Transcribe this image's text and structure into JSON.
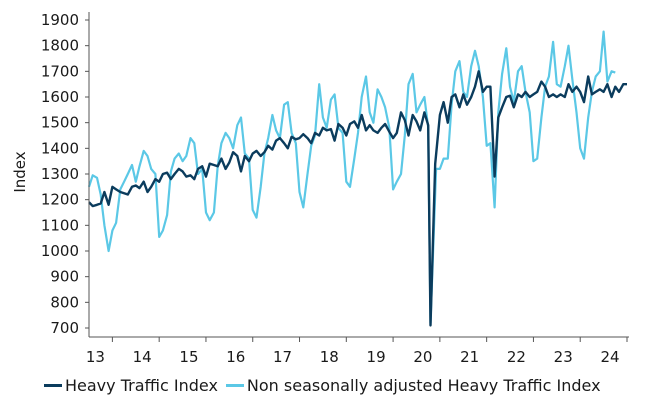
{
  "chart_data": {
    "type": "line",
    "title": "",
    "xlabel": "",
    "ylabel": "Index",
    "ylim": [
      700,
      1900
    ],
    "yticks": [
      700,
      800,
      900,
      1000,
      1100,
      1200,
      1300,
      1400,
      1500,
      1600,
      1700,
      1800,
      1900
    ],
    "xlim": [
      2012.5,
      2024.0
    ],
    "xticks": [
      {
        "value": 2013.0,
        "label": "13"
      },
      {
        "value": 2014.0,
        "label": "14"
      },
      {
        "value": 2015.0,
        "label": "15"
      },
      {
        "value": 2016.0,
        "label": "16"
      },
      {
        "value": 2017.0,
        "label": "17"
      },
      {
        "value": 2018.0,
        "label": "18"
      },
      {
        "value": 2019.0,
        "label": "19"
      },
      {
        "value": 2020.0,
        "label": "20"
      },
      {
        "value": 2021.0,
        "label": "21"
      },
      {
        "value": 2022.0,
        "label": "22"
      },
      {
        "value": 2023.0,
        "label": "23"
      },
      {
        "value": 2024.0,
        "label": "24"
      }
    ],
    "legend_position": "bottom",
    "series": [
      {
        "name": "Heavy Traffic Index",
        "color": "#0b3c5d",
        "points": [
          [
            2012.5,
            1190
          ],
          [
            2012.58,
            1175
          ],
          [
            2012.67,
            1180
          ],
          [
            2012.75,
            1185
          ],
          [
            2012.83,
            1230
          ],
          [
            2012.92,
            1180
          ],
          [
            2013.0,
            1250
          ],
          [
            2013.08,
            1240
          ],
          [
            2013.17,
            1230
          ],
          [
            2013.25,
            1225
          ],
          [
            2013.33,
            1220
          ],
          [
            2013.42,
            1250
          ],
          [
            2013.5,
            1255
          ],
          [
            2013.58,
            1245
          ],
          [
            2013.67,
            1270
          ],
          [
            2013.75,
            1230
          ],
          [
            2013.83,
            1250
          ],
          [
            2013.92,
            1280
          ],
          [
            2014.0,
            1270
          ],
          [
            2014.08,
            1300
          ],
          [
            2014.17,
            1305
          ],
          [
            2014.25,
            1280
          ],
          [
            2014.33,
            1300
          ],
          [
            2014.42,
            1320
          ],
          [
            2014.5,
            1310
          ],
          [
            2014.58,
            1290
          ],
          [
            2014.67,
            1295
          ],
          [
            2014.75,
            1280
          ],
          [
            2014.83,
            1320
          ],
          [
            2014.92,
            1330
          ],
          [
            2015.0,
            1290
          ],
          [
            2015.08,
            1340
          ],
          [
            2015.17,
            1335
          ],
          [
            2015.25,
            1330
          ],
          [
            2015.33,
            1360
          ],
          [
            2015.42,
            1320
          ],
          [
            2015.5,
            1345
          ],
          [
            2015.58,
            1385
          ],
          [
            2015.67,
            1370
          ],
          [
            2015.75,
            1310
          ],
          [
            2015.83,
            1370
          ],
          [
            2015.92,
            1350
          ],
          [
            2016.0,
            1380
          ],
          [
            2016.08,
            1390
          ],
          [
            2016.17,
            1370
          ],
          [
            2016.25,
            1385
          ],
          [
            2016.33,
            1410
          ],
          [
            2016.42,
            1395
          ],
          [
            2016.5,
            1430
          ],
          [
            2016.58,
            1440
          ],
          [
            2016.67,
            1420
          ],
          [
            2016.75,
            1400
          ],
          [
            2016.83,
            1445
          ],
          [
            2016.92,
            1435
          ],
          [
            2017.0,
            1440
          ],
          [
            2017.08,
            1455
          ],
          [
            2017.17,
            1440
          ],
          [
            2017.25,
            1420
          ],
          [
            2017.33,
            1460
          ],
          [
            2017.42,
            1450
          ],
          [
            2017.5,
            1480
          ],
          [
            2017.58,
            1470
          ],
          [
            2017.67,
            1475
          ],
          [
            2017.75,
            1430
          ],
          [
            2017.83,
            1495
          ],
          [
            2017.92,
            1480
          ],
          [
            2018.0,
            1450
          ],
          [
            2018.08,
            1495
          ],
          [
            2018.17,
            1505
          ],
          [
            2018.25,
            1480
          ],
          [
            2018.33,
            1530
          ],
          [
            2018.42,
            1470
          ],
          [
            2018.5,
            1490
          ],
          [
            2018.58,
            1470
          ],
          [
            2018.67,
            1460
          ],
          [
            2018.75,
            1480
          ],
          [
            2018.83,
            1495
          ],
          [
            2018.92,
            1465
          ],
          [
            2019.0,
            1440
          ],
          [
            2019.08,
            1460
          ],
          [
            2019.17,
            1540
          ],
          [
            2019.25,
            1510
          ],
          [
            2019.33,
            1450
          ],
          [
            2019.42,
            1530
          ],
          [
            2019.5,
            1505
          ],
          [
            2019.58,
            1470
          ],
          [
            2019.67,
            1540
          ],
          [
            2019.75,
            1490
          ],
          [
            2019.8,
            710
          ],
          [
            2019.9,
            1340
          ],
          [
            2020.0,
            1530
          ],
          [
            2020.08,
            1580
          ],
          [
            2020.17,
            1500
          ],
          [
            2020.25,
            1600
          ],
          [
            2020.33,
            1610
          ],
          [
            2020.42,
            1560
          ],
          [
            2020.5,
            1610
          ],
          [
            2020.58,
            1570
          ],
          [
            2020.67,
            1600
          ],
          [
            2020.75,
            1640
          ],
          [
            2020.83,
            1700
          ],
          [
            2020.92,
            1620
          ],
          [
            2021.0,
            1640
          ],
          [
            2021.08,
            1640
          ],
          [
            2021.17,
            1290
          ],
          [
            2021.25,
            1520
          ],
          [
            2021.33,
            1560
          ],
          [
            2021.42,
            1600
          ],
          [
            2021.5,
            1605
          ],
          [
            2021.58,
            1560
          ],
          [
            2021.67,
            1610
          ],
          [
            2021.75,
            1600
          ],
          [
            2021.83,
            1620
          ],
          [
            2021.92,
            1600
          ],
          [
            2022.0,
            1610
          ],
          [
            2022.08,
            1620
          ],
          [
            2022.17,
            1660
          ],
          [
            2022.25,
            1640
          ],
          [
            2022.33,
            1600
          ],
          [
            2022.42,
            1610
          ],
          [
            2022.5,
            1600
          ],
          [
            2022.58,
            1610
          ],
          [
            2022.67,
            1600
          ],
          [
            2022.75,
            1650
          ],
          [
            2022.83,
            1620
          ],
          [
            2022.92,
            1640
          ],
          [
            2023.0,
            1620
          ],
          [
            2023.08,
            1580
          ],
          [
            2023.17,
            1680
          ],
          [
            2023.25,
            1610
          ],
          [
            2023.33,
            1620
          ],
          [
            2023.42,
            1630
          ],
          [
            2023.5,
            1620
          ],
          [
            2023.58,
            1650
          ],
          [
            2023.67,
            1600
          ],
          [
            2023.75,
            1640
          ],
          [
            2023.83,
            1620
          ],
          [
            2023.92,
            1650
          ],
          [
            2024.0,
            1650
          ]
        ]
      },
      {
        "name": "Non seasonally adjusted Heavy Traffic Index",
        "color": "#5bc8e6",
        "points": [
          [
            2012.5,
            1250
          ],
          [
            2012.58,
            1295
          ],
          [
            2012.67,
            1285
          ],
          [
            2012.75,
            1220
          ],
          [
            2012.83,
            1100
          ],
          [
            2012.92,
            1000
          ],
          [
            2013.0,
            1080
          ],
          [
            2013.08,
            1110
          ],
          [
            2013.17,
            1240
          ],
          [
            2013.25,
            1270
          ],
          [
            2013.33,
            1300
          ],
          [
            2013.42,
            1335
          ],
          [
            2013.5,
            1270
          ],
          [
            2013.58,
            1330
          ],
          [
            2013.67,
            1390
          ],
          [
            2013.75,
            1370
          ],
          [
            2013.83,
            1320
          ],
          [
            2013.92,
            1300
          ],
          [
            2014.0,
            1055
          ],
          [
            2014.08,
            1080
          ],
          [
            2014.17,
            1140
          ],
          [
            2014.25,
            1310
          ],
          [
            2014.33,
            1360
          ],
          [
            2014.42,
            1380
          ],
          [
            2014.5,
            1350
          ],
          [
            2014.58,
            1370
          ],
          [
            2014.67,
            1440
          ],
          [
            2014.75,
            1420
          ],
          [
            2014.83,
            1300
          ],
          [
            2014.92,
            1320
          ],
          [
            2015.0,
            1150
          ],
          [
            2015.08,
            1120
          ],
          [
            2015.17,
            1150
          ],
          [
            2015.25,
            1330
          ],
          [
            2015.33,
            1420
          ],
          [
            2015.42,
            1460
          ],
          [
            2015.5,
            1440
          ],
          [
            2015.58,
            1400
          ],
          [
            2015.67,
            1490
          ],
          [
            2015.75,
            1520
          ],
          [
            2015.83,
            1380
          ],
          [
            2015.92,
            1360
          ],
          [
            2016.0,
            1160
          ],
          [
            2016.08,
            1130
          ],
          [
            2016.17,
            1250
          ],
          [
            2016.25,
            1380
          ],
          [
            2016.33,
            1440
          ],
          [
            2016.42,
            1530
          ],
          [
            2016.5,
            1470
          ],
          [
            2016.58,
            1440
          ],
          [
            2016.67,
            1570
          ],
          [
            2016.75,
            1580
          ],
          [
            2016.83,
            1460
          ],
          [
            2016.92,
            1420
          ],
          [
            2017.0,
            1230
          ],
          [
            2017.08,
            1170
          ],
          [
            2017.17,
            1300
          ],
          [
            2017.25,
            1410
          ],
          [
            2017.33,
            1450
          ],
          [
            2017.42,
            1650
          ],
          [
            2017.5,
            1520
          ],
          [
            2017.58,
            1480
          ],
          [
            2017.67,
            1590
          ],
          [
            2017.75,
            1610
          ],
          [
            2017.83,
            1480
          ],
          [
            2017.92,
            1460
          ],
          [
            2018.0,
            1270
          ],
          [
            2018.08,
            1250
          ],
          [
            2018.17,
            1360
          ],
          [
            2018.25,
            1460
          ],
          [
            2018.33,
            1600
          ],
          [
            2018.42,
            1680
          ],
          [
            2018.5,
            1540
          ],
          [
            2018.58,
            1500
          ],
          [
            2018.67,
            1630
          ],
          [
            2018.75,
            1600
          ],
          [
            2018.83,
            1560
          ],
          [
            2018.92,
            1480
          ],
          [
            2019.0,
            1240
          ],
          [
            2019.08,
            1270
          ],
          [
            2019.17,
            1300
          ],
          [
            2019.25,
            1450
          ],
          [
            2019.33,
            1650
          ],
          [
            2019.42,
            1690
          ],
          [
            2019.5,
            1540
          ],
          [
            2019.58,
            1570
          ],
          [
            2019.67,
            1600
          ],
          [
            2019.75,
            1480
          ],
          [
            2019.8,
            720
          ],
          [
            2019.92,
            1320
          ],
          [
            2020.0,
            1320
          ],
          [
            2020.08,
            1360
          ],
          [
            2020.17,
            1360
          ],
          [
            2020.25,
            1570
          ],
          [
            2020.33,
            1700
          ],
          [
            2020.42,
            1740
          ],
          [
            2020.5,
            1620
          ],
          [
            2020.58,
            1600
          ],
          [
            2020.67,
            1720
          ],
          [
            2020.75,
            1780
          ],
          [
            2020.83,
            1720
          ],
          [
            2020.92,
            1600
          ],
          [
            2021.0,
            1410
          ],
          [
            2021.08,
            1420
          ],
          [
            2021.17,
            1170
          ],
          [
            2021.25,
            1540
          ],
          [
            2021.33,
            1690
          ],
          [
            2021.42,
            1790
          ],
          [
            2021.5,
            1640
          ],
          [
            2021.58,
            1580
          ],
          [
            2021.67,
            1700
          ],
          [
            2021.75,
            1720
          ],
          [
            2021.83,
            1620
          ],
          [
            2021.92,
            1540
          ],
          [
            2022.0,
            1350
          ],
          [
            2022.08,
            1360
          ],
          [
            2022.17,
            1520
          ],
          [
            2022.25,
            1640
          ],
          [
            2022.33,
            1680
          ],
          [
            2022.42,
            1815
          ],
          [
            2022.5,
            1650
          ],
          [
            2022.58,
            1640
          ],
          [
            2022.67,
            1720
          ],
          [
            2022.75,
            1800
          ],
          [
            2022.83,
            1670
          ],
          [
            2022.92,
            1540
          ],
          [
            2023.0,
            1400
          ],
          [
            2023.08,
            1360
          ],
          [
            2023.17,
            1520
          ],
          [
            2023.25,
            1620
          ],
          [
            2023.33,
            1680
          ],
          [
            2023.42,
            1700
          ],
          [
            2023.5,
            1855
          ],
          [
            2023.58,
            1660
          ],
          [
            2023.67,
            1700
          ],
          [
            2023.75,
            1695
          ]
        ]
      }
    ]
  }
}
